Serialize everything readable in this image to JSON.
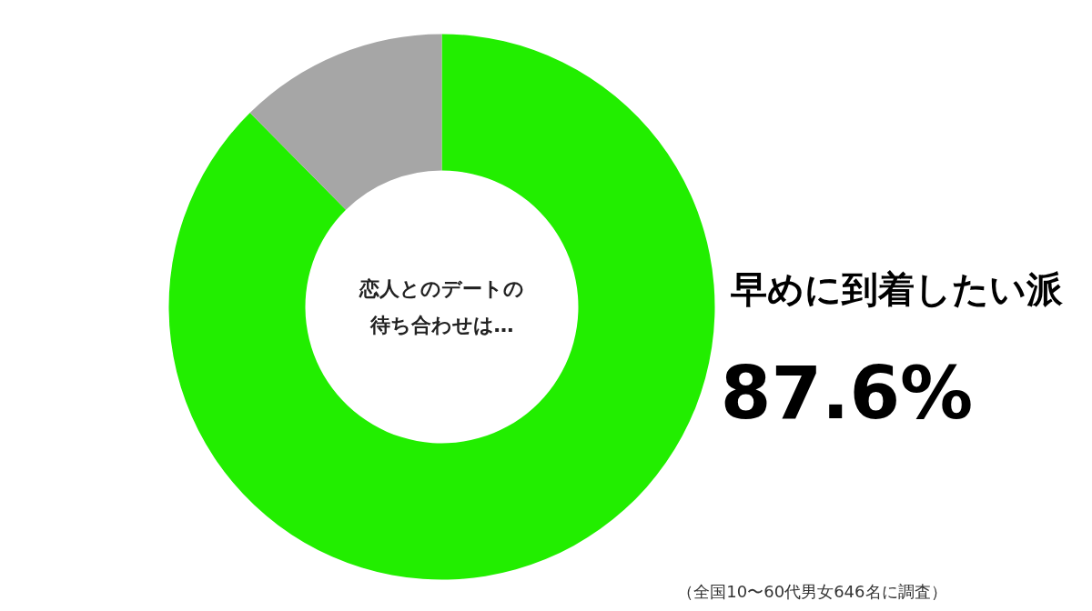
{
  "chart_data": {
    "type": "donut",
    "title": "恋人とのデートの待ち合わせは…",
    "categories": [
      "早めに到着したい派",
      null
    ],
    "values": [
      87.6,
      12.4
    ],
    "colors": [
      "#22ee00",
      "#a6a6a6"
    ],
    "value_labels": [
      "87.6%",
      null
    ],
    "annotations": [
      "（全国10〜60代男女646名に調査）"
    ]
  }
}
